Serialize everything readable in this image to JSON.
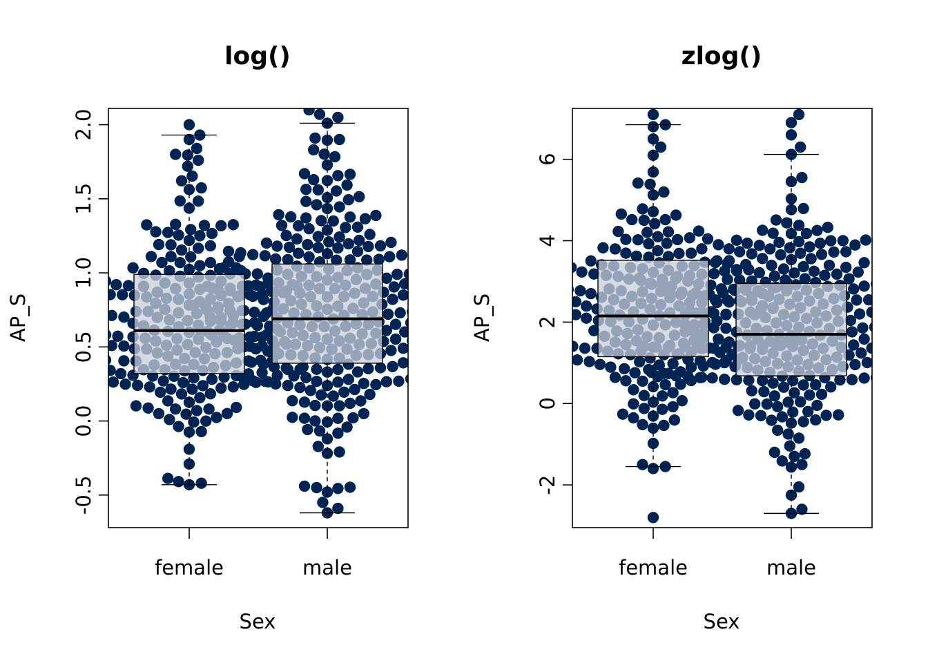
{
  "chart_data": [
    {
      "type": "beeswarm-boxplot",
      "title": "log()",
      "xlabel": "Sex",
      "ylabel": "AP_S",
      "categories": [
        "female",
        "male"
      ],
      "yticks": [
        -0.5,
        0.0,
        0.5,
        1.0,
        1.5,
        2.0
      ],
      "ytick_labels": [
        "-0.5",
        "0.0",
        "0.5",
        "1.0",
        "1.5",
        "2.0"
      ],
      "ylim": [
        -0.72,
        2.11
      ],
      "grid": false,
      "legend": "none",
      "colors": {
        "points": "#002454",
        "box_fill": "#c7cdd9"
      },
      "boxes": [
        {
          "category": "female",
          "whisker_low": -0.43,
          "q1": 0.32,
          "median": 0.61,
          "q3": 0.99,
          "whisker_high": 1.93
        },
        {
          "category": "male",
          "whisker_low": -0.62,
          "q1": 0.39,
          "median": 0.69,
          "q3": 1.06,
          "whisker_high": 2.01
        }
      ],
      "swarm": [
        {
          "category": "female",
          "n": 230,
          "center": 0.65,
          "spread": 0.42,
          "range": [
            -0.43,
            2.0
          ],
          "seed": 11,
          "outliers": [
            -0.43,
            -0.42,
            1.72,
            1.76,
            1.8,
            1.84,
            1.9,
            1.93,
            2.0
          ]
        },
        {
          "category": "male",
          "n": 300,
          "center": 0.72,
          "spread": 0.45,
          "range": [
            -0.62,
            2.11
          ],
          "seed": 29,
          "outliers": [
            -0.62,
            -0.59,
            -0.55,
            -0.48,
            -0.45,
            2.01,
            2.05,
            2.07,
            2.1
          ]
        }
      ]
    },
    {
      "type": "beeswarm-boxplot",
      "title": "zlog()",
      "xlabel": "Sex",
      "ylabel": "AP_S",
      "categories": [
        "female",
        "male"
      ],
      "yticks": [
        -2,
        0,
        2,
        4,
        6
      ],
      "ytick_labels": [
        "-2",
        "0",
        "2",
        "4",
        "6"
      ],
      "ylim": [
        -3.05,
        7.25
      ],
      "grid": false,
      "legend": "none",
      "colors": {
        "points": "#002454",
        "box_fill": "#c7cdd9"
      },
      "boxes": [
        {
          "category": "female",
          "whisker_low": -1.55,
          "q1": 1.15,
          "median": 2.15,
          "q3": 3.52,
          "whisker_high": 6.85
        },
        {
          "category": "male",
          "whisker_low": -2.7,
          "q1": 0.68,
          "median": 1.7,
          "q3": 2.95,
          "whisker_high": 6.12
        }
      ],
      "swarm": [
        {
          "category": "female",
          "n": 230,
          "center": 2.3,
          "spread": 1.45,
          "range": [
            -2.8,
            7.1
          ],
          "seed": 43,
          "outliers": [
            -2.8,
            -1.55,
            -1.5,
            6.1,
            6.3,
            6.5,
            6.8,
            6.85,
            7.1
          ]
        },
        {
          "category": "male",
          "n": 300,
          "center": 1.9,
          "spread": 1.55,
          "range": [
            -2.7,
            7.1
          ],
          "seed": 71,
          "outliers": [
            -2.7,
            -2.6,
            -2.25,
            -2.05,
            6.12,
            6.3,
            6.6,
            6.9,
            7.1
          ]
        }
      ]
    }
  ]
}
